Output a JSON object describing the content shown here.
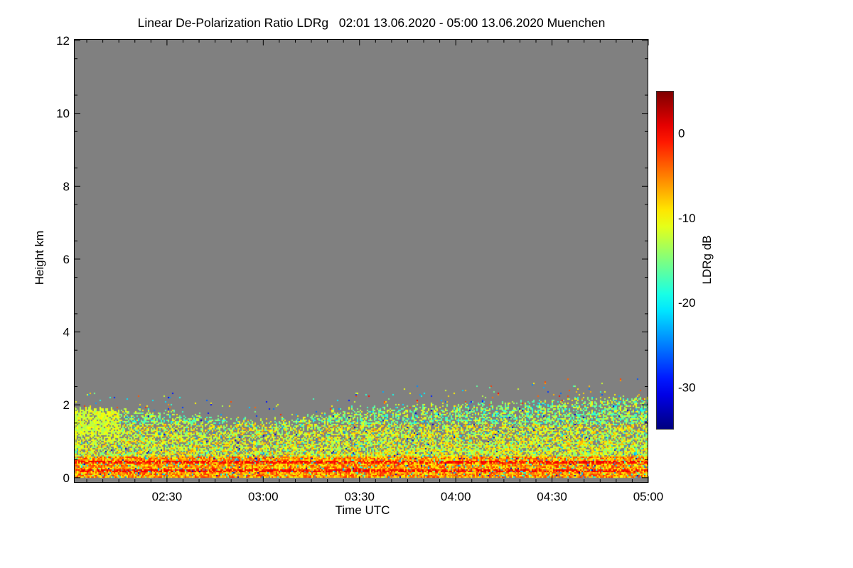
{
  "chart_data": {
    "type": "heatmap",
    "title": "Linear De-Polarization Ratio LDRg   02:01 13.06.2020 - 05:00 13.06.2020 Muenchen",
    "xlabel": "Time UTC",
    "ylabel": "Height km",
    "x_range_minutes_utc": [
      121,
      300
    ],
    "xlim_labels": [
      "02:01",
      "05:00"
    ],
    "x_ticks": [
      "02:30",
      "03:00",
      "03:30",
      "04:00",
      "04:30",
      "05:00"
    ],
    "x_tick_minutes": [
      150,
      180,
      210,
      240,
      270,
      300
    ],
    "ylim": [
      -0.14,
      12.04
    ],
    "y_ticks": [
      0,
      2,
      4,
      6,
      8,
      10,
      12
    ],
    "y_tick_labels": [
      "0",
      "2",
      "4",
      "6",
      "8",
      "10",
      "12"
    ],
    "colorbar": {
      "label": "LDRg dB",
      "range": [
        -35,
        5
      ],
      "ticks": [
        0,
        -10,
        -20,
        -30
      ],
      "tick_labels": [
        "0",
        "-10",
        "-20",
        "-30"
      ],
      "colormap": "jet"
    },
    "no_data_color": "#808080",
    "layer_top_km": {
      "minutes": [
        121,
        135,
        150,
        165,
        180,
        195,
        210,
        225,
        240,
        255,
        270,
        285,
        300
      ],
      "height": [
        1.95,
        1.85,
        1.8,
        1.7,
        1.55,
        1.75,
        1.9,
        2.0,
        2.0,
        2.05,
        2.1,
        2.2,
        2.2
      ]
    },
    "typical_ldr_db": {
      "near_surface_0_to_0.6km": -6,
      "mid_layer_0.6_to_1.5km": -11,
      "layer_top": -14
    },
    "enhanced_bands_km": [
      0.2,
      0.45
    ]
  }
}
